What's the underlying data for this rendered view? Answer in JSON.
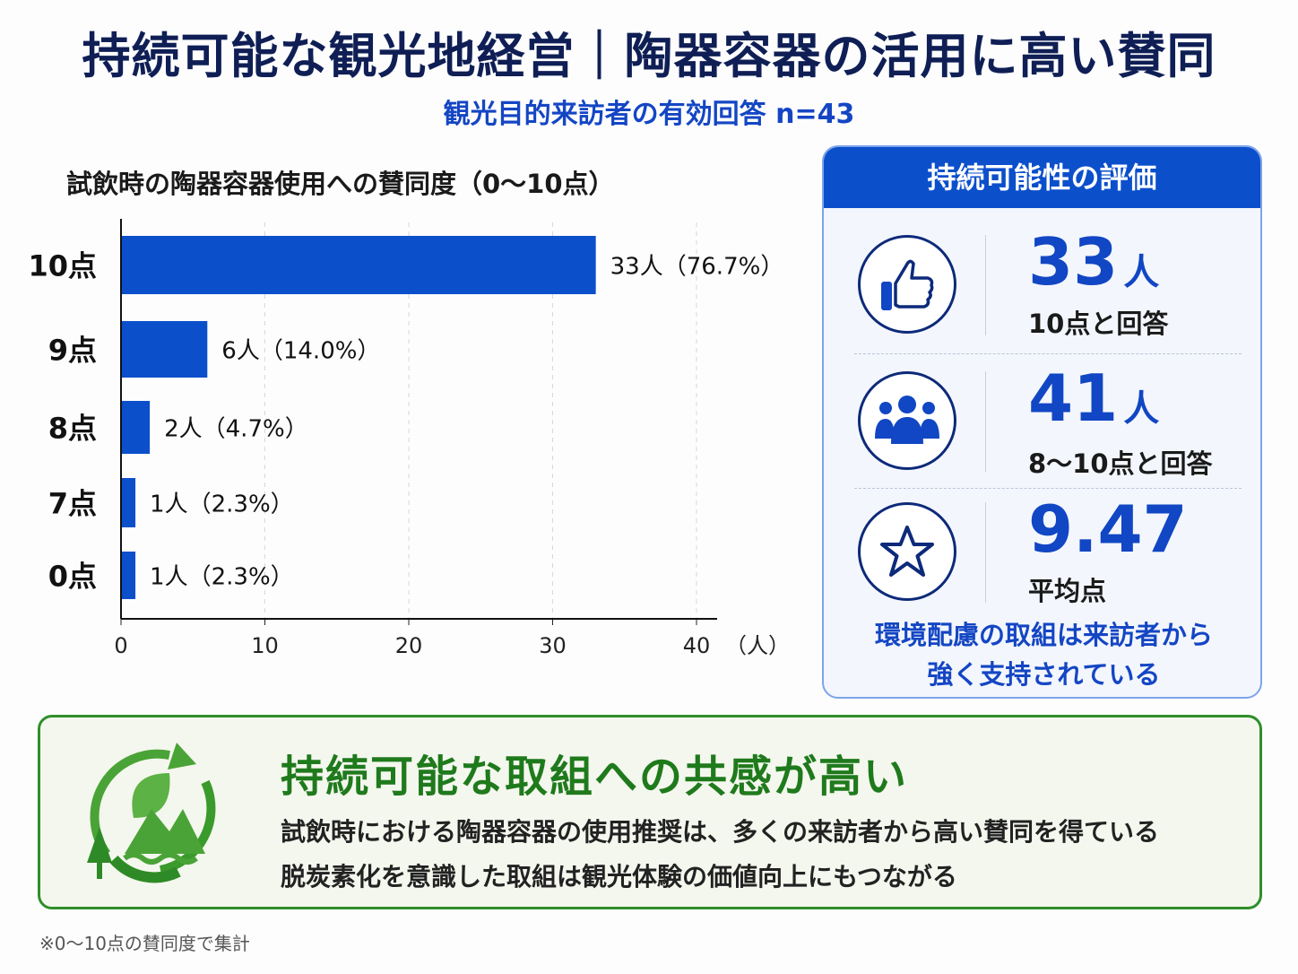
{
  "title": "持続可能な観光地経営｜陶器容器の活用に高い賛同",
  "subtitle": "観光目的来訪者の有効回答 n=43",
  "chart_data": {
    "type": "bar",
    "orientation": "horizontal",
    "title": "試飲時の陶器容器使用への賛同度（0〜10点）",
    "categories": [
      "10点",
      "9点",
      "8点",
      "7点",
      "0点"
    ],
    "values": [
      33,
      6,
      2,
      1,
      1
    ],
    "data_labels": [
      "33人（76.7%）",
      "6人（14.0%）",
      "2人（4.7%）",
      "1人（2.3%）",
      "1人（2.3%）"
    ],
    "xlabel": "（人）",
    "xlim": [
      0,
      40
    ],
    "xticks": [
      "0",
      "10",
      "20",
      "30",
      "40"
    ],
    "grid": "vertical dashed",
    "color": "#0b4fcb"
  },
  "panel": {
    "title": "持続可能性の評価",
    "stats": [
      {
        "icon": "thumbs-up-icon",
        "value": "33",
        "unit": "人",
        "label": "10点と回答"
      },
      {
        "icon": "group-icon",
        "value": "41",
        "unit": "人",
        "label": "8〜10点と回答"
      },
      {
        "icon": "star-icon",
        "value": "9.47",
        "unit": "",
        "label": "平均点"
      }
    ],
    "message_line1": "環境配慮の取組は来訪者から",
    "message_line2": "強く支持されている"
  },
  "callout": {
    "title": "持続可能な取組への共感が高い",
    "line1": "試飲時における陶器容器の使用推奨は、多くの来訪者から高い賛同を得ている",
    "line2": "脱炭素化を意識した取組は観光体験の価値向上にもつながる"
  },
  "footnote": "※0〜10点の賛同度で集計"
}
